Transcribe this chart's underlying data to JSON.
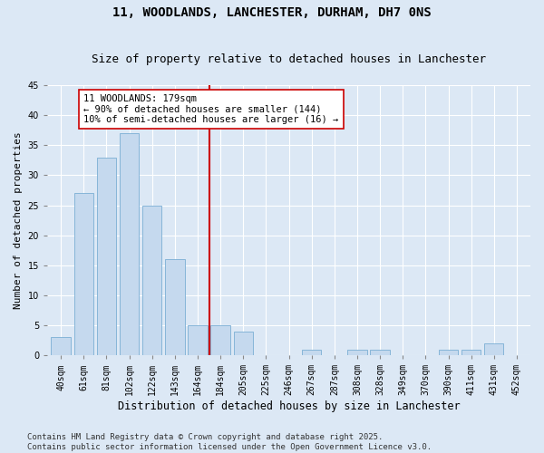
{
  "title1": "11, WOODLANDS, LANCHESTER, DURHAM, DH7 0NS",
  "title2": "Size of property relative to detached houses in Lanchester",
  "xlabel": "Distribution of detached houses by size in Lanchester",
  "ylabel": "Number of detached properties",
  "bins": [
    "40sqm",
    "61sqm",
    "81sqm",
    "102sqm",
    "122sqm",
    "143sqm",
    "164sqm",
    "184sqm",
    "205sqm",
    "225sqm",
    "246sqm",
    "267sqm",
    "287sqm",
    "308sqm",
    "328sqm",
    "349sqm",
    "370sqm",
    "390sqm",
    "411sqm",
    "431sqm",
    "452sqm"
  ],
  "values": [
    3,
    27,
    33,
    37,
    25,
    16,
    5,
    5,
    4,
    0,
    0,
    1,
    0,
    1,
    1,
    0,
    0,
    1,
    1,
    2,
    0
  ],
  "bar_color": "#c5d9ee",
  "bar_edge_color": "#7aaed4",
  "vline_x_index": 7,
  "vline_color": "#cc0000",
  "annotation_line1": "11 WOODLANDS: 179sqm",
  "annotation_line2": "← 90% of detached houses are smaller (144)",
  "annotation_line3": "10% of semi-detached houses are larger (16) →",
  "annotation_box_color": "#ffffff",
  "annotation_box_edge": "#cc0000",
  "ylim": [
    0,
    45
  ],
  "yticks": [
    0,
    5,
    10,
    15,
    20,
    25,
    30,
    35,
    40,
    45
  ],
  "footer1": "Contains HM Land Registry data © Crown copyright and database right 2025.",
  "footer2": "Contains public sector information licensed under the Open Government Licence v3.0.",
  "bg_color": "#dce8f5",
  "plot_bg_color": "#dce8f5",
  "title1_fontsize": 10,
  "title2_fontsize": 9,
  "xlabel_fontsize": 8.5,
  "ylabel_fontsize": 8,
  "tick_fontsize": 7,
  "annotation_fontsize": 7.5,
  "footer_fontsize": 6.5
}
